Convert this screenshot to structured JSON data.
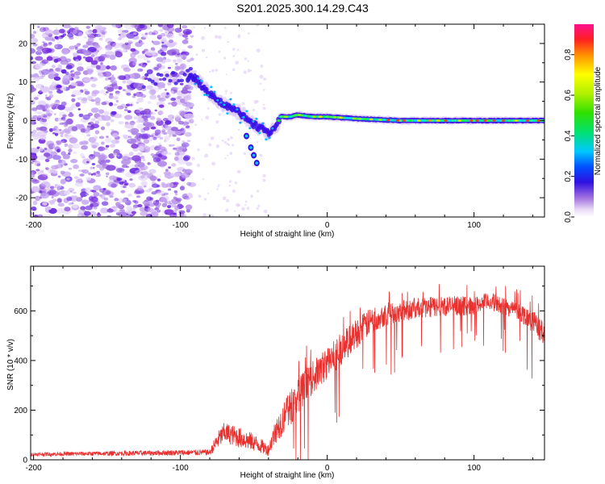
{
  "title": "S201.2025.300.14.29.C43",
  "chart_data": [
    {
      "type": "heatmap",
      "name": "spectrogram",
      "xlabel": "Height of straight line (km)",
      "ylabel": "Frequency (Hz)",
      "xlim": [
        -202,
        148
      ],
      "ylim": [
        -25,
        25
      ],
      "xticks": [
        -200,
        -100,
        0,
        100
      ],
      "yticks": [
        -20,
        -10,
        0,
        10,
        20
      ],
      "colorbar": {
        "label": "Normalized spectral amplitude",
        "range": [
          0,
          0.95
        ],
        "ticks": [
          0,
          0.2,
          0.4,
          0.6,
          0.8
        ],
        "tick_labels": [
          "0.0",
          "0.2",
          "0.4",
          "0.6",
          "0.8"
        ]
      },
      "ridge": [
        {
          "x": -90,
          "f": 11
        },
        {
          "x": -85,
          "f": 9
        },
        {
          "x": -80,
          "f": 7
        },
        {
          "x": -75,
          "f": 5
        },
        {
          "x": -70,
          "f": 4
        },
        {
          "x": -65,
          "f": 3
        },
        {
          "x": -60,
          "f": 2
        },
        {
          "x": -55,
          "f": 1
        },
        {
          "x": -50,
          "f": -1
        },
        {
          "x": -45,
          "f": -2
        },
        {
          "x": -40,
          "f": -3
        },
        {
          "x": -35,
          "f": -2
        },
        {
          "x": -32,
          "f": 1
        },
        {
          "x": -25,
          "f": 1
        },
        {
          "x": -20,
          "f": 1.5
        },
        {
          "x": -10,
          "f": 1
        },
        {
          "x": 0,
          "f": 1
        },
        {
          "x": 20,
          "f": 0.5
        },
        {
          "x": 50,
          "f": 0
        },
        {
          "x": 100,
          "f": 0
        },
        {
          "x": 148,
          "f": 0
        }
      ],
      "side_branch": [
        {
          "x": -55,
          "f": -4
        },
        {
          "x": -52,
          "f": -7
        },
        {
          "x": -50,
          "f": -9
        },
        {
          "x": -48,
          "f": -11
        }
      ]
    },
    {
      "type": "line",
      "name": "snr",
      "xlabel": "Height of straight line (km)",
      "ylabel": "SNR (10 * v/v)",
      "xlim": [
        -202,
        148
      ],
      "ylim": [
        0,
        780
      ],
      "xticks": [
        -200,
        -100,
        0,
        100
      ],
      "yticks": [
        0,
        200,
        400,
        600
      ],
      "color": "#e8302e",
      "envelope": {
        "x": [
          -202,
          -80,
          -75,
          -70,
          -60,
          -50,
          -40,
          -35,
          -25,
          -20,
          -10,
          0,
          10,
          20,
          30,
          40,
          60,
          80,
          100,
          110,
          120,
          130,
          140,
          148
        ],
        "mean": [
          22,
          30,
          75,
          110,
          90,
          70,
          40,
          120,
          210,
          260,
          330,
          390,
          450,
          510,
          560,
          590,
          610,
          620,
          620,
          640,
          620,
          600,
          560,
          500
        ],
        "amplitude": [
          12,
          20,
          60,
          70,
          70,
          60,
          40,
          90,
          120,
          120,
          110,
          110,
          110,
          100,
          90,
          80,
          70,
          70,
          60,
          60,
          60,
          60,
          80,
          80
        ]
      }
    }
  ]
}
